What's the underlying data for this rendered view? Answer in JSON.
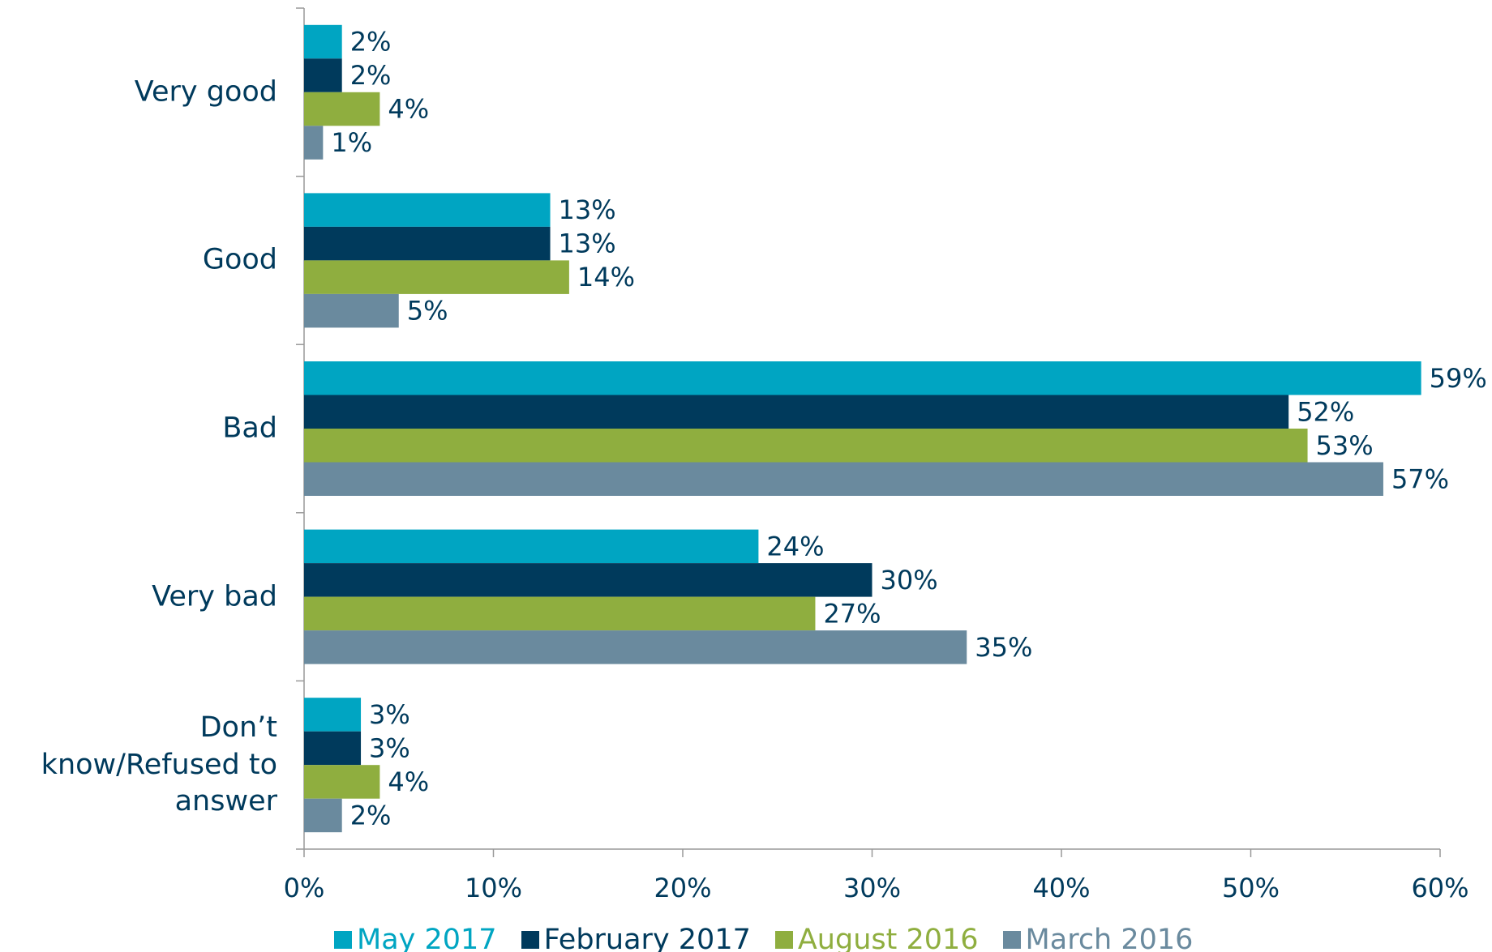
{
  "chart_data": {
    "type": "bar",
    "orientation": "horizontal",
    "categories": [
      "Very good",
      "Good",
      "Bad",
      "Very bad",
      "Don’t know/Refused to answer"
    ],
    "series": [
      {
        "name": "May 2017",
        "color": "#00a5c2",
        "values": [
          2,
          13,
          59,
          24,
          3
        ],
        "value_labels": [
          "2%",
          "13%",
          "59%",
          "24%",
          "3%"
        ]
      },
      {
        "name": "February 2017",
        "color": "#003a5c",
        "values": [
          2,
          13,
          52,
          30,
          3
        ],
        "value_labels": [
          "2%",
          "13%",
          "52%",
          "30%",
          "3%"
        ]
      },
      {
        "name": "August 2016",
        "color": "#8fae3f",
        "values": [
          4,
          14,
          53,
          27,
          4
        ],
        "value_labels": [
          "4%",
          "14%",
          "53%",
          "27%",
          "4%"
        ]
      },
      {
        "name": "March 2016",
        "color": "#6a8a9e",
        "values": [
          1,
          5,
          57,
          35,
          2
        ],
        "value_labels": [
          "1%",
          "5%",
          "57%",
          "35%",
          "2%"
        ]
      }
    ],
    "xlim": [
      0,
      60
    ],
    "xticks": [
      {
        "value": 0,
        "label": "0%"
      },
      {
        "value": 10,
        "label": "10%"
      },
      {
        "value": 20,
        "label": "20%"
      },
      {
        "value": 30,
        "label": "30%"
      },
      {
        "value": 40,
        "label": "40%"
      },
      {
        "value": 50,
        "label": "50%"
      },
      {
        "value": 60,
        "label": "60%"
      }
    ],
    "legend": "bottom"
  }
}
